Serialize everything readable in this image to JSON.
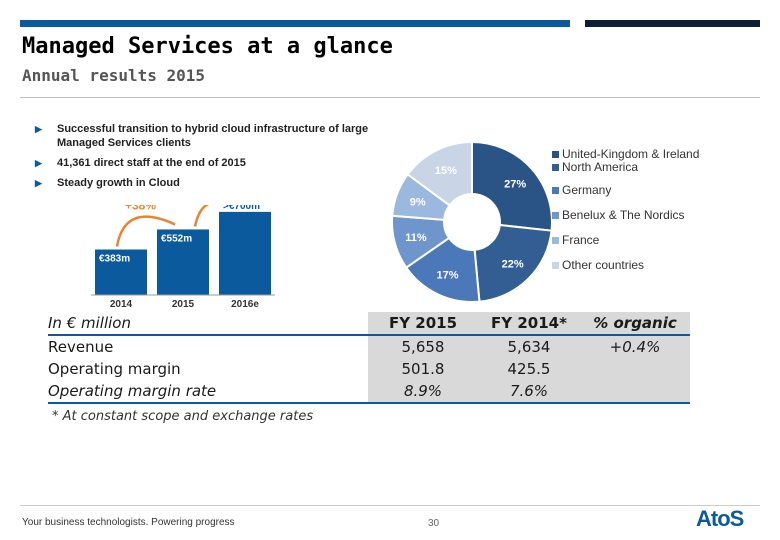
{
  "header": {
    "title": "Managed Services at a glance",
    "subtitle": "Annual results 2015"
  },
  "bullets": [
    "Successful transition to hybrid cloud infrastructure of large Managed Services clients",
    "41,361 direct staff at the end of 2015",
    "Steady growth in Cloud"
  ],
  "bar_chart": {
    "type": "bar",
    "categories": [
      "2014",
      "2015",
      "2016e"
    ],
    "values": [
      383,
      552,
      700
    ],
    "value_labels": [
      "€383m",
      "€552m",
      ">€700m"
    ],
    "growth_label": "+38%",
    "color": "#0b5a9e",
    "ylim": [
      0,
      800
    ]
  },
  "pie_chart": {
    "type": "pie",
    "labels": [
      "United-Kingdom & Ireland",
      "North America",
      "Germany",
      "Benelux & The Nordics",
      "France",
      "Other countries"
    ],
    "values": [
      27,
      22,
      17,
      11,
      9,
      15
    ],
    "value_labels": [
      "27%",
      "22%",
      "17%",
      "11%",
      "9%",
      "15%"
    ],
    "colors": [
      "#2b5486",
      "#335e94",
      "#4a78b8",
      "#6e95cc",
      "#9bb8de",
      "#c9d4e6"
    ]
  },
  "table": {
    "headers": [
      "In € million",
      "FY 2015",
      "FY 2014*",
      "% organic"
    ],
    "rows": [
      [
        "Revenue",
        "5,658",
        "5,634",
        "+0.4%"
      ],
      [
        "Operating margin",
        "501.8",
        "425.5",
        ""
      ],
      [
        "Operating margin rate",
        "8.9%",
        "7.6%",
        ""
      ]
    ],
    "footnote": "* At constant scope and exchange rates"
  },
  "footer": {
    "tagline": "Your business technologists. Powering progress",
    "page_number": "30",
    "logo_text": "AtoS"
  },
  "chart_data": [
    {
      "type": "bar",
      "title": "",
      "categories": [
        "2014",
        "2015",
        "2016e"
      ],
      "values": [
        383,
        552,
        700
      ],
      "data_labels": [
        "€383m",
        "€552m",
        ">€700m"
      ],
      "annotation": "+38%",
      "ylim": [
        0,
        800
      ]
    },
    {
      "type": "pie",
      "labels": [
        "United-Kingdom & Ireland",
        "North America",
        "Germany",
        "Benelux & The Nordics",
        "France",
        "Other countries"
      ],
      "values": [
        27,
        22,
        17,
        11,
        9,
        15
      ]
    }
  ]
}
